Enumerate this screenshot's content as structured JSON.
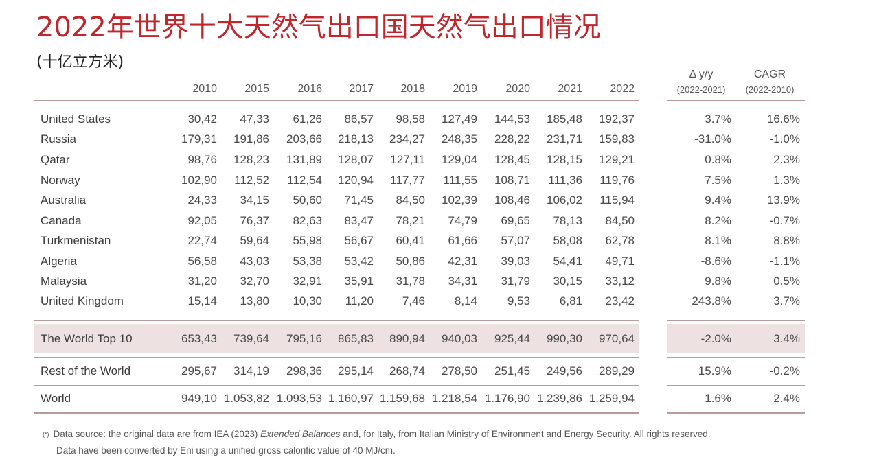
{
  "title": "2022年世界十大天然气出口国天然气出口情况",
  "unit": "(十亿立方米)",
  "table": {
    "years": [
      "2010",
      "2015",
      "2016",
      "2017",
      "2018",
      "2019",
      "2020",
      "2021",
      "2022"
    ],
    "delta_header": "Δ y/y",
    "delta_sub": "(2022-2021)",
    "cagr_header": "CAGR",
    "cagr_sub": "(2022-2010)",
    "rows": [
      {
        "country": "United States",
        "values": [
          "30,42",
          "47,33",
          "61,26",
          "86,57",
          "98,58",
          "127,49",
          "144,53",
          "185,48",
          "192,37"
        ],
        "delta": "3.7%",
        "cagr": "16.6%"
      },
      {
        "country": "Russia",
        "values": [
          "179,31",
          "191,86",
          "203,66",
          "218,13",
          "234,27",
          "248,35",
          "228,22",
          "231,71",
          "159,83"
        ],
        "delta": "-31.0%",
        "cagr": "-1.0%"
      },
      {
        "country": "Qatar",
        "values": [
          "98,76",
          "128,23",
          "131,89",
          "128,07",
          "127,11",
          "129,04",
          "128,45",
          "128,15",
          "129,21"
        ],
        "delta": "0.8%",
        "cagr": "2.3%"
      },
      {
        "country": "Norway",
        "values": [
          "102,90",
          "112,52",
          "112,54",
          "120,94",
          "117,77",
          "111,55",
          "108,71",
          "111,36",
          "119,76"
        ],
        "delta": "7.5%",
        "cagr": "1.3%"
      },
      {
        "country": "Australia",
        "values": [
          "24,33",
          "34,15",
          "50,60",
          "71,45",
          "84,50",
          "102,39",
          "108,46",
          "106,02",
          "115,94"
        ],
        "delta": "9.4%",
        "cagr": "13.9%"
      },
      {
        "country": "Canada",
        "values": [
          "92,05",
          "76,37",
          "82,63",
          "83,47",
          "78,21",
          "74,79",
          "69,65",
          "78,13",
          "84,50"
        ],
        "delta": "8.2%",
        "cagr": "-0.7%"
      },
      {
        "country": "Turkmenistan",
        "values": [
          "22,74",
          "59,64",
          "55,98",
          "56,67",
          "60,41",
          "61,66",
          "57,07",
          "58,08",
          "62,78"
        ],
        "delta": "8.1%",
        "cagr": "8.8%"
      },
      {
        "country": "Algeria",
        "values": [
          "56,58",
          "43,03",
          "53,38",
          "53,42",
          "50,86",
          "42,31",
          "39,03",
          "54,41",
          "49,71"
        ],
        "delta": "-8.6%",
        "cagr": "-1.1%"
      },
      {
        "country": "Malaysia",
        "values": [
          "31,20",
          "32,70",
          "32,91",
          "35,91",
          "31,78",
          "34,31",
          "31,79",
          "30,15",
          "33,12"
        ],
        "delta": "9.8%",
        "cagr": "0.5%"
      },
      {
        "country": "United Kingdom",
        "values": [
          "15,14",
          "13,80",
          "10,30",
          "11,20",
          "7,46",
          "8,14",
          "9,53",
          "6,81",
          "23,42"
        ],
        "delta": "243.8%",
        "cagr": "3.7%"
      }
    ],
    "top10": {
      "country": "The World Top 10",
      "values": [
        "653,43",
        "739,64",
        "795,16",
        "865,83",
        "890,94",
        "940,03",
        "925,44",
        "990,30",
        "970,64"
      ],
      "delta": "-2.0%",
      "cagr": "3.4%"
    },
    "rest": {
      "country": "Rest of the World",
      "values": [
        "295,67",
        "314,19",
        "298,36",
        "295,14",
        "268,74",
        "278,50",
        "251,45",
        "249,56",
        "289,29"
      ],
      "delta": "15.9%",
      "cagr": "-0.2%"
    },
    "world": {
      "country": "World",
      "values": [
        "949,10",
        "1.053,82",
        "1.093,53",
        "1.160,97",
        "1.159,68",
        "1.218,54",
        "1.176,90",
        "1.239,86",
        "1.259,94"
      ],
      "delta": "1.6%",
      "cagr": "2.4%"
    }
  },
  "footnote": {
    "marker": "(*)",
    "line1_prefix": "Data source: the original data are from IEA (2023) ",
    "line1_italic": "Extended Balances",
    "line1_suffix": " and, for Italy, from Italian Ministry of Environment and Energy Security. All rights reserved.",
    "line2": "Data have been converted by Eni using a unified gross calorific value of 40 MJ/cm."
  },
  "colors": {
    "title": "#c0272d",
    "band": "#ede1e1",
    "rule": "#b89a99"
  }
}
